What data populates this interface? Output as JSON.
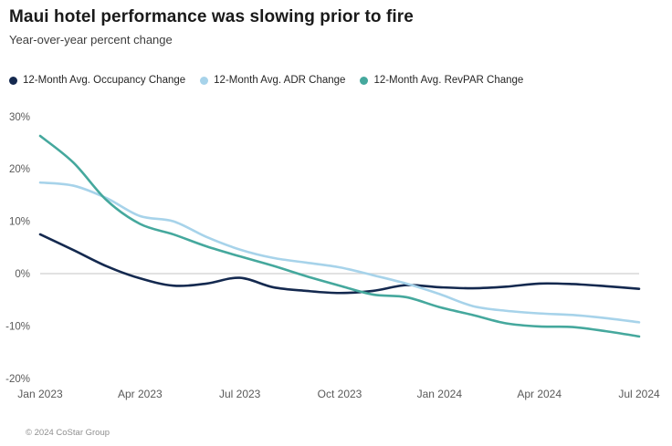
{
  "header": {
    "title": "Maui hotel performance was slowing prior to fire",
    "subtitle": "Year-over-year percent change"
  },
  "footer": {
    "copyright": "© 2024 CoStar Group"
  },
  "chart_data": {
    "type": "line",
    "title": "Maui hotel performance was slowing prior to fire",
    "subtitle": "Year-over-year percent change",
    "xlabel": "",
    "ylabel": "Year-over-year percent change",
    "ylim": [
      -20,
      30
    ],
    "grid": "zero-line-only",
    "legend_position": "top-left",
    "axis_text_color": "#595959",
    "zero_line_color": "#d8d8d8",
    "categories": [
      "Jan 2023",
      "Feb 2023",
      "Mar 2023",
      "Apr 2023",
      "May 2023",
      "Jun 2023",
      "Jul 2023",
      "Aug 2023",
      "Sep 2023",
      "Oct 2023",
      "Nov 2023",
      "Dec 2023",
      "Jan 2024",
      "Feb 2024",
      "Mar 2024",
      "Apr 2024",
      "May 2024",
      "Jun 2024",
      "Jul 2024"
    ],
    "series": [
      {
        "name": "12-Month Avg. Occupancy Change",
        "color": "#14294f",
        "values": [
          7.5,
          4.5,
          1.4,
          -0.9,
          -2.3,
          -1.9,
          -0.8,
          -2.6,
          -3.3,
          -3.7,
          -3.3,
          -2.2,
          -2.6,
          -2.8,
          -2.5,
          -1.9,
          -2.0,
          -2.4,
          -2.9
        ]
      },
      {
        "name": "12-Month Avg. ADR Change",
        "color": "#a7d3ea",
        "values": [
          17.4,
          16.8,
          14.4,
          11.0,
          10.0,
          7.0,
          4.6,
          3.0,
          2.1,
          1.2,
          -0.3,
          -1.9,
          -3.9,
          -6.2,
          -7.1,
          -7.6,
          -7.9,
          -8.5,
          -9.3
        ]
      },
      {
        "name": "12-Month Avg. RevPAR Change",
        "color": "#45a89d",
        "values": [
          26.3,
          21.2,
          14.0,
          9.5,
          7.5,
          5.2,
          3.3,
          1.5,
          -0.5,
          -2.3,
          -4.0,
          -4.5,
          -6.4,
          -7.9,
          -9.5,
          -10.1,
          -10.2,
          -11.0,
          -12.0
        ]
      }
    ],
    "y_ticks": [
      {
        "value": 30,
        "label": "30%"
      },
      {
        "value": 20,
        "label": "20%"
      },
      {
        "value": 10,
        "label": "10%"
      },
      {
        "value": 0,
        "label": "0%"
      },
      {
        "value": -10,
        "label": "-10%"
      },
      {
        "value": -20,
        "label": "-20%"
      }
    ],
    "x_ticks": [
      {
        "index": 0,
        "label": "Jan 2023"
      },
      {
        "index": 3,
        "label": "Apr 2023"
      },
      {
        "index": 6,
        "label": "Jul 2023"
      },
      {
        "index": 9,
        "label": "Oct 2023"
      },
      {
        "index": 12,
        "label": "Jan 2024"
      },
      {
        "index": 15,
        "label": "Apr 2024"
      },
      {
        "index": 18,
        "label": "Jul 2024"
      }
    ]
  }
}
